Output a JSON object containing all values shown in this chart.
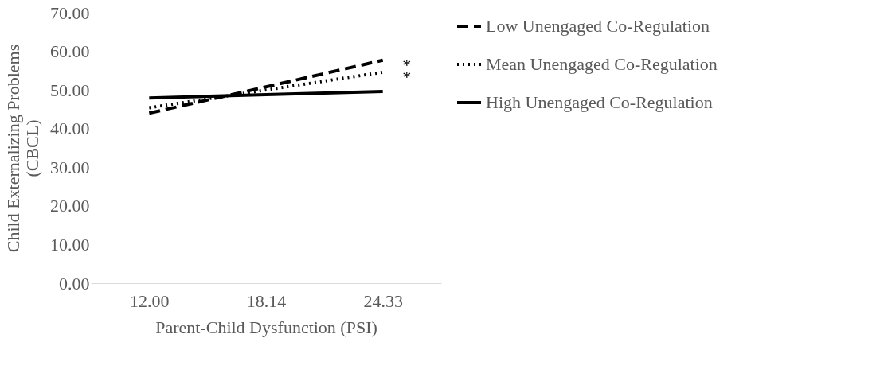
{
  "chart_data": {
    "type": "line",
    "xlabel": "Parent-Child Dysfunction (PSI)",
    "ylabel": "Child Externalizing Problems (CBCL)",
    "categories": [
      "12.00",
      "18.14",
      "24.33"
    ],
    "series": [
      {
        "name": "Low Unengaged Co-Regulation",
        "color": "#000000",
        "line_style": "dashed",
        "values": [
          44.0,
          50.8,
          57.7
        ]
      },
      {
        "name": "Mean Unengaged Co-Regulation",
        "color": "#000000",
        "line_style": "dotted",
        "values": [
          45.4,
          50.0,
          54.6
        ]
      },
      {
        "name": "High Unengaged Co-Regulation",
        "color": "#000000",
        "line_style": "solid",
        "values": [
          47.9,
          48.8,
          49.6
        ]
      }
    ],
    "ylim": [
      0,
      70
    ],
    "yticks": [
      {
        "value": 0,
        "label": "0.00"
      },
      {
        "value": 10,
        "label": "10.00"
      },
      {
        "value": 20,
        "label": "20.00"
      },
      {
        "value": 30,
        "label": "30.00"
      },
      {
        "value": 40,
        "label": "40.00"
      },
      {
        "value": 50,
        "label": "50.00"
      },
      {
        "value": 60,
        "label": "60.00"
      },
      {
        "value": 70,
        "label": "70.00"
      }
    ],
    "grid": false,
    "legend": "right",
    "marker": "none",
    "annotations": [
      {
        "text": "*",
        "x": "24.33",
        "y": 57.7
      },
      {
        "text": "*",
        "x": "24.33",
        "y": 54.6
      }
    ]
  }
}
